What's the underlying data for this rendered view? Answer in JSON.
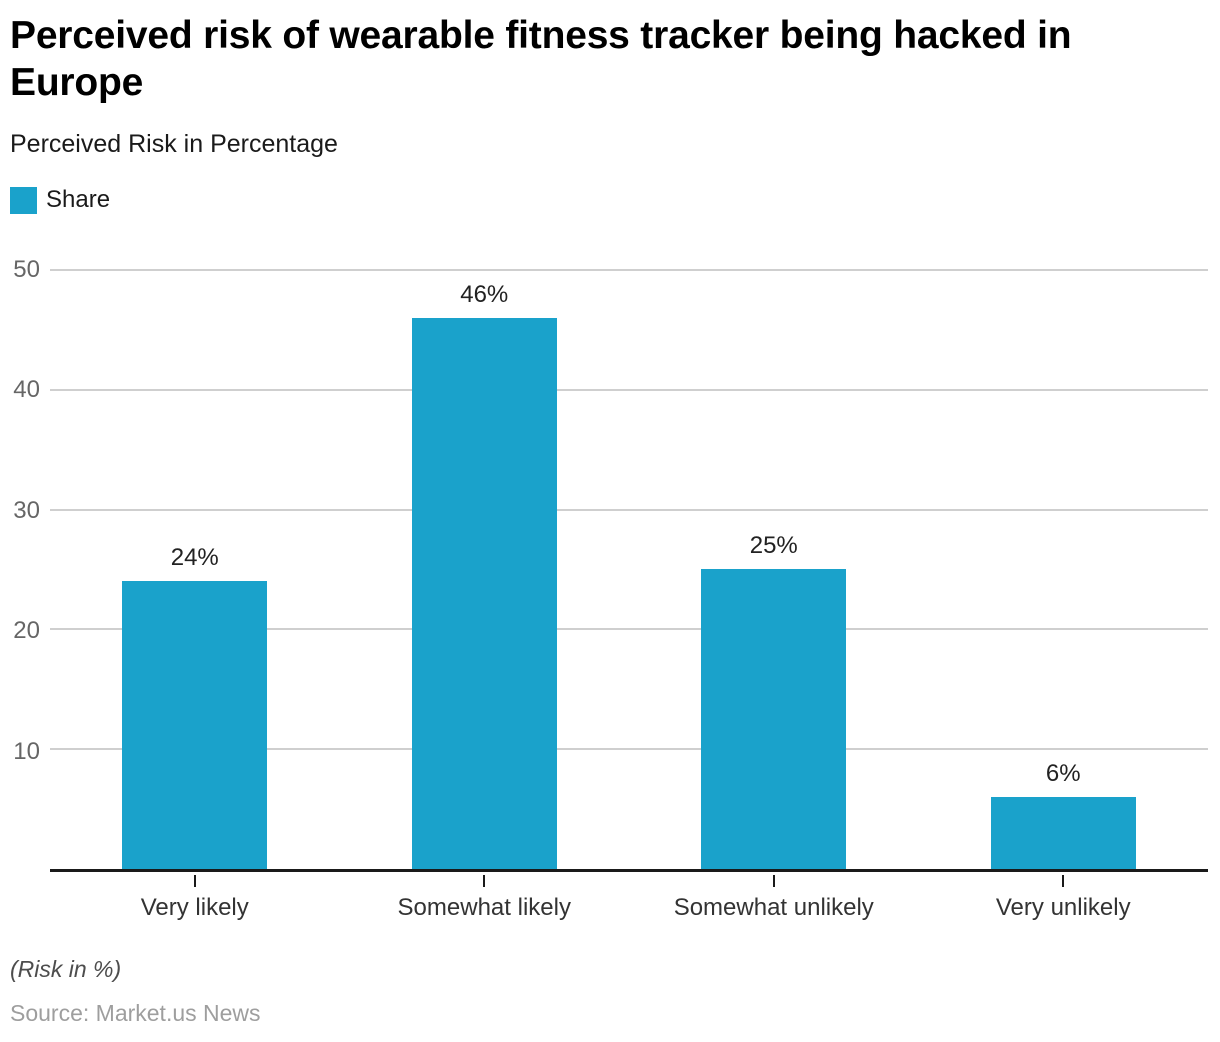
{
  "header": {
    "title": "Perceived risk of wearable fitness tracker being hacked in Europe",
    "subtitle": "Perceived Risk in Percentage"
  },
  "legend": {
    "label": "Share"
  },
  "chart_data": {
    "type": "bar",
    "title": "Perceived risk of wearable fitness tracker being hacked in Europe",
    "subtitle": "Perceived Risk in Percentage",
    "categories": [
      "Very likely",
      "Somewhat likely",
      "Somewhat unlikely",
      "Very unlikely"
    ],
    "series": [
      {
        "name": "Share",
        "values": [
          24,
          46,
          25,
          6
        ]
      }
    ],
    "value_labels": [
      "24%",
      "46%",
      "25%",
      "6%"
    ],
    "xlabel": "",
    "ylabel": "",
    "yticks": [
      10,
      20,
      30,
      40,
      50
    ],
    "ylim": [
      0,
      52.5
    ],
    "grid": true,
    "legend_position": "top-left"
  },
  "footer": {
    "note": "(Risk in %)",
    "source": "Source: Market.us News"
  },
  "colors": {
    "bar": "#1AA2CB",
    "gridline": "#cfcfcf",
    "axis_line": "#1a1a1a",
    "ytick_label": "#666666",
    "category_label": "#333333",
    "value_label": "#222222"
  }
}
